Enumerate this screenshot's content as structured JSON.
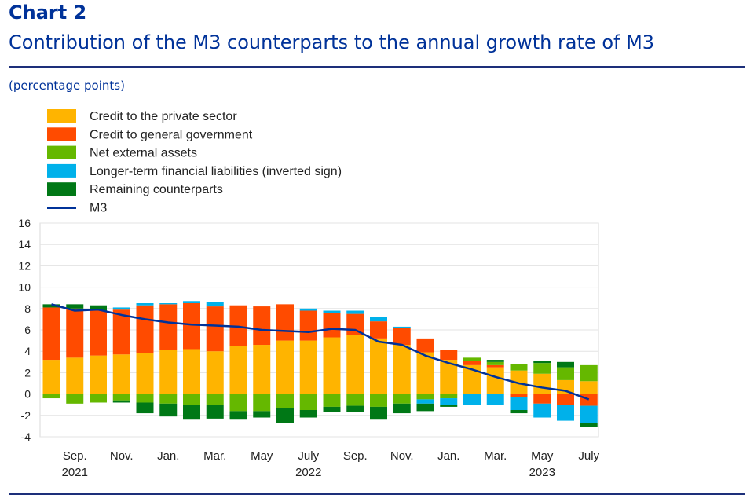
{
  "header": {
    "label": "Chart 2",
    "title": "Contribution of the M3 counterparts to the annual growth rate of M3",
    "unit": "(percentage points)"
  },
  "chart_data": {
    "type": "bar",
    "subtype": "stacked-bar-with-line",
    "title": "Contribution of the M3 counterparts to the annual growth rate of M3",
    "ylabel": "(percentage points)",
    "ylim": [
      -4,
      16
    ],
    "yticks": [
      16,
      14,
      12,
      10,
      8,
      6,
      4,
      2,
      0,
      -2,
      -4
    ],
    "legend_position": "top-left",
    "categories": [
      "Aug 2021",
      "Sep 2021",
      "Oct 2021",
      "Nov 2021",
      "Dec 2021",
      "Jan 2022",
      "Feb 2022",
      "Mar 2022",
      "Apr 2022",
      "May 2022",
      "Jun 2022",
      "Jul 2022",
      "Aug 2022",
      "Sep 2022",
      "Oct 2022",
      "Nov 2022",
      "Dec 2022",
      "Jan 2023",
      "Feb 2023",
      "Mar 2023",
      "Apr 2023",
      "May 2023",
      "Jun 2023",
      "Jul 2023"
    ],
    "x_tick_labels": [
      {
        "index": 1,
        "month": "Sep.",
        "year": "2021"
      },
      {
        "index": 3,
        "month": "Nov.",
        "year": ""
      },
      {
        "index": 5,
        "month": "Jan.",
        "year": ""
      },
      {
        "index": 7,
        "month": "Mar.",
        "year": ""
      },
      {
        "index": 9,
        "month": "May",
        "year": ""
      },
      {
        "index": 11,
        "month": "July",
        "year": "2022"
      },
      {
        "index": 13,
        "month": "Sep.",
        "year": ""
      },
      {
        "index": 15,
        "month": "Nov.",
        "year": ""
      },
      {
        "index": 17,
        "month": "Jan.",
        "year": ""
      },
      {
        "index": 19,
        "month": "Mar.",
        "year": ""
      },
      {
        "index": 21,
        "month": "May",
        "year": "2023"
      },
      {
        "index": 23,
        "month": "July",
        "year": ""
      }
    ],
    "series": [
      {
        "name": "Credit to the private sector",
        "color": "#FFB400",
        "values": [
          3.2,
          3.4,
          3.6,
          3.7,
          3.8,
          4.1,
          4.2,
          4.0,
          4.5,
          4.6,
          5.0,
          5.0,
          5.3,
          5.5,
          5.2,
          4.6,
          3.9,
          3.2,
          2.7,
          2.5,
          2.2,
          1.9,
          1.3,
          1.2
        ]
      },
      {
        "name": "Credit to general government",
        "color": "#FF4B00",
        "values": [
          4.9,
          4.6,
          4.2,
          4.2,
          4.5,
          4.3,
          4.3,
          4.2,
          3.8,
          3.6,
          3.4,
          2.8,
          2.3,
          2.0,
          1.6,
          1.6,
          1.3,
          0.9,
          0.4,
          0.2,
          -0.3,
          -0.9,
          -1.0,
          -1.1
        ]
      },
      {
        "name": "Net external assets",
        "color": "#65B800",
        "values": [
          -0.4,
          -0.9,
          -0.8,
          -0.6,
          -0.8,
          -0.9,
          -1.0,
          -1.0,
          -1.6,
          -1.6,
          -1.3,
          -1.5,
          -1.2,
          -1.1,
          -1.2,
          -0.9,
          -0.5,
          -0.4,
          0.3,
          0.3,
          0.6,
          1.0,
          1.2,
          1.5
        ]
      },
      {
        "name": "Longer-term financial liabilities (inverted sign)",
        "color": "#00B1EA",
        "values": [
          0.0,
          0.0,
          0.0,
          0.2,
          0.2,
          0.1,
          0.2,
          0.4,
          0.0,
          0.0,
          0.0,
          0.2,
          0.2,
          0.3,
          0.4,
          0.1,
          -0.4,
          -0.6,
          -1.0,
          -1.0,
          -1.2,
          -1.3,
          -1.5,
          -1.6
        ]
      },
      {
        "name": "Remaining counterparts",
        "color": "#007816",
        "values": [
          0.3,
          0.4,
          0.5,
          -0.2,
          -1.0,
          -1.2,
          -1.4,
          -1.3,
          -0.8,
          -0.6,
          -1.4,
          -0.7,
          -0.5,
          -0.6,
          -1.2,
          -0.9,
          -0.7,
          -0.2,
          0.0,
          0.2,
          -0.3,
          0.2,
          0.5,
          -0.4
        ]
      }
    ],
    "line": {
      "name": "M3",
      "color": "#003299",
      "values": [
        8.4,
        7.8,
        7.9,
        7.4,
        7.0,
        6.7,
        6.5,
        6.4,
        6.3,
        6.0,
        5.9,
        5.8,
        6.1,
        6.0,
        4.9,
        4.6,
        3.6,
        2.9,
        2.3,
        1.6,
        1.0,
        0.6,
        0.3,
        -0.5
      ]
    }
  }
}
